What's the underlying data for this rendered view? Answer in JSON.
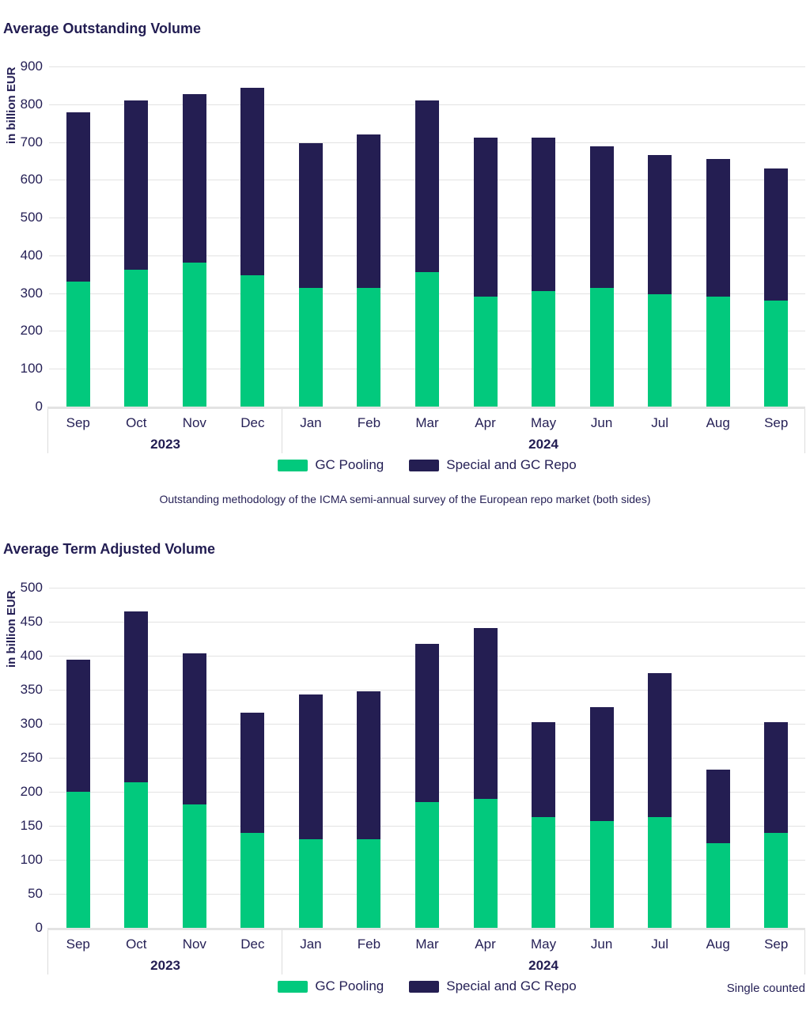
{
  "colors": {
    "green": "#02c97d",
    "navy": "#241e52",
    "text": "#241f55",
    "gridline": "#e3e3e3",
    "axis_band_border": "#e3e3e3"
  },
  "chart_data": [
    {
      "type": "bar",
      "stacked": true,
      "title": "Average Outstanding Volume",
      "ylabel": "in billion EUR",
      "ylim": [
        0,
        900
      ],
      "ytick_step": 100,
      "grid": true,
      "legend_position": "bottom-center",
      "categories": [
        "Sep",
        "Oct",
        "Nov",
        "Dec",
        "Jan",
        "Feb",
        "Mar",
        "Apr",
        "May",
        "Jun",
        "Jul",
        "Aug",
        "Sep"
      ],
      "year_groups": [
        {
          "label": "2023",
          "span": 4
        },
        {
          "label": "2024",
          "span": 9
        }
      ],
      "series": [
        {
          "name": "GC Pooling",
          "color": "#02c97d",
          "values": [
            330,
            362,
            380,
            347,
            313,
            313,
            355,
            290,
            305,
            313,
            297,
            290,
            281
          ]
        },
        {
          "name": "Special and GC Repo",
          "color": "#241e52",
          "values": [
            448,
            448,
            447,
            496,
            383,
            407,
            455,
            422,
            407,
            375,
            368,
            365,
            350
          ]
        }
      ],
      "totals": [
        778,
        810,
        827,
        843,
        696,
        720,
        810,
        712,
        712,
        688,
        665,
        655,
        631
      ],
      "footnote": "Outstanding methodology of the ICMA semi-annual survey of the European repo market (both sides)"
    },
    {
      "type": "bar",
      "stacked": true,
      "title": "Average Term Adjusted Volume",
      "ylabel": "in billion EUR",
      "ylim": [
        0,
        500
      ],
      "ytick_step": 50,
      "grid": true,
      "legend_position": "bottom-center",
      "categories": [
        "Sep",
        "Oct",
        "Nov",
        "Dec",
        "Jan",
        "Feb",
        "Mar",
        "Apr",
        "May",
        "Jun",
        "Jul",
        "Aug",
        "Sep"
      ],
      "year_groups": [
        {
          "label": "2023",
          "span": 4
        },
        {
          "label": "2024",
          "span": 9
        }
      ],
      "series": [
        {
          "name": "GC Pooling",
          "color": "#02c97d",
          "values": [
            200,
            214,
            181,
            140,
            130,
            130,
            185,
            190,
            163,
            157,
            163,
            125,
            140
          ]
        },
        {
          "name": "Special and GC Repo",
          "color": "#241e52",
          "values": [
            194,
            251,
            223,
            176,
            213,
            218,
            232,
            251,
            139,
            168,
            212,
            107,
            162
          ]
        }
      ],
      "totals": [
        394,
        465,
        404,
        316,
        343,
        348,
        417,
        441,
        302,
        325,
        375,
        232,
        302
      ],
      "note_right": "Single counted"
    }
  ]
}
